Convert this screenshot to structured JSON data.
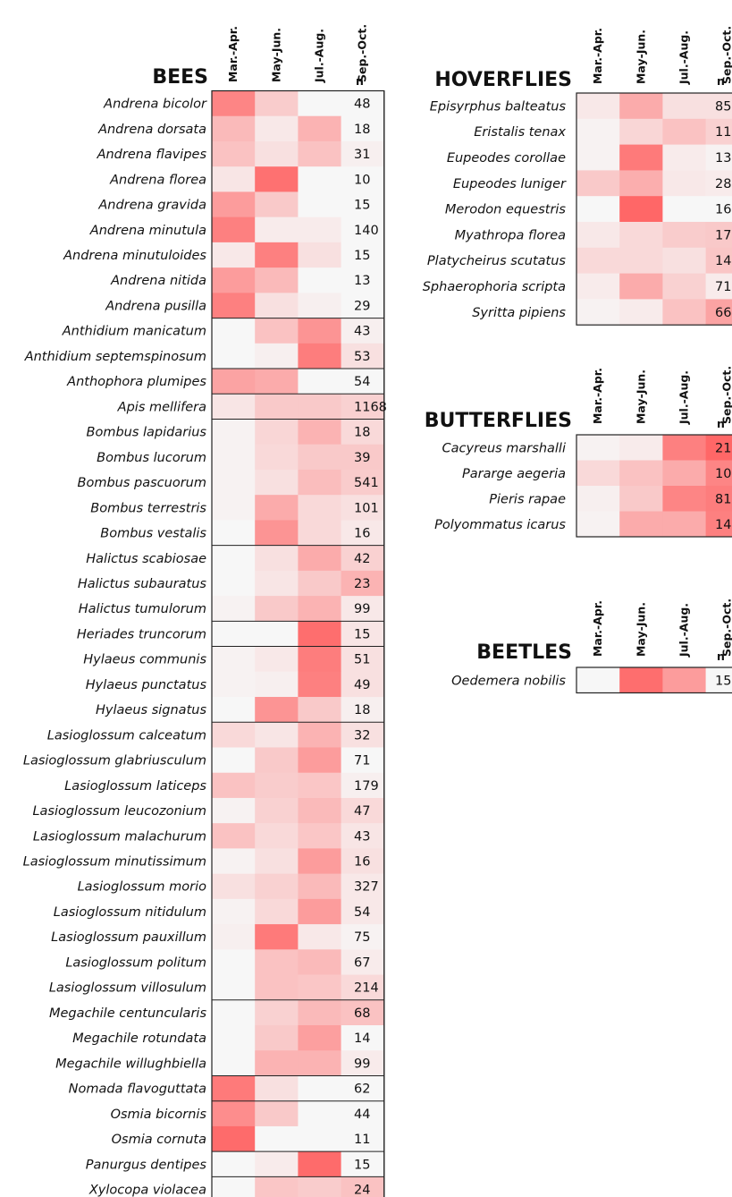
{
  "month_labels": [
    "Mar.-Apr.",
    "May-Jun.",
    "Jul.-Aug.",
    "Sep.-Oct."
  ],
  "n_label": "n",
  "color_scale": {
    "low": "#f7f7f7",
    "high": "#ff5f5f"
  },
  "chart_data": {
    "type": "heatmap",
    "value_description": "relative share of observations per period (0 = none, 1 = maximum), read from cell shading",
    "columns": [
      "Mar.-Apr.",
      "May-Jun.",
      "Jul.-Aug.",
      "Sep.-Oct."
    ],
    "panels": [
      {
        "title": "BEES",
        "rows": [
          {
            "species": "Andrena bicolor",
            "n": "48",
            "values": [
              0.75,
              0.28,
              0.0,
              0.0
            ],
            "group_start": true
          },
          {
            "species": "Andrena dorsata",
            "n": "18",
            "values": [
              0.4,
              0.1,
              0.45,
              0.0
            ]
          },
          {
            "species": "Andrena flavipes",
            "n": "31",
            "values": [
              0.35,
              0.15,
              0.35,
              0.05
            ]
          },
          {
            "species": "Andrena florea",
            "n": "10",
            "values": [
              0.12,
              0.88,
              0.0,
              0.0
            ]
          },
          {
            "species": "Andrena gravida",
            "n": "15",
            "values": [
              0.6,
              0.3,
              0.0,
              0.0
            ]
          },
          {
            "species": "Andrena minutula",
            "n": "140",
            "values": [
              0.78,
              0.08,
              0.08,
              0.0
            ]
          },
          {
            "species": "Andrena minutuloides",
            "n": "15",
            "values": [
              0.1,
              0.78,
              0.15,
              0.0
            ]
          },
          {
            "species": "Andrena nitida",
            "n": "13",
            "values": [
              0.6,
              0.4,
              0.0,
              0.0
            ]
          },
          {
            "species": "Andrena pusilla",
            "n": "29",
            "values": [
              0.78,
              0.15,
              0.05,
              0.0
            ]
          },
          {
            "species": "Anthidium manicatum",
            "n": "43",
            "values": [
              0.0,
              0.35,
              0.65,
              0.05
            ],
            "group_start": true
          },
          {
            "species": "Anthidium septemspinosum",
            "n": "53",
            "values": [
              0.0,
              0.05,
              0.8,
              0.15
            ]
          },
          {
            "species": "Anthophora plumipes",
            "n": "54",
            "values": [
              0.55,
              0.5,
              0.0,
              0.0
            ],
            "group_start": true
          },
          {
            "species": "Apis mellifera",
            "n": "1168",
            "values": [
              0.12,
              0.3,
              0.3,
              0.25
            ],
            "group_start": true
          },
          {
            "species": "Bombus lapidarius",
            "n": "18",
            "values": [
              0.03,
              0.22,
              0.45,
              0.2
            ],
            "group_start": true
          },
          {
            "species": "Bombus lucorum",
            "n": "39",
            "values": [
              0.03,
              0.2,
              0.3,
              0.3
            ]
          },
          {
            "species": "Bombus pascuorum",
            "n": "541",
            "values": [
              0.03,
              0.15,
              0.38,
              0.28
            ]
          },
          {
            "species": "Bombus terrestris",
            "n": "101",
            "values": [
              0.03,
              0.5,
              0.2,
              0.15
            ]
          },
          {
            "species": "Bombus vestalis",
            "n": "16",
            "values": [
              0.0,
              0.65,
              0.2,
              0.1
            ]
          },
          {
            "species": "Halictus scabiosae",
            "n": "42",
            "values": [
              0.0,
              0.15,
              0.5,
              0.25
            ],
            "group_start": true
          },
          {
            "species": "Halictus subauratus",
            "n": "23",
            "values": [
              0.0,
              0.12,
              0.3,
              0.45
            ]
          },
          {
            "species": "Halictus tumulorum",
            "n": "99",
            "values": [
              0.03,
              0.3,
              0.45,
              0.1
            ]
          },
          {
            "species": "Heriades truncorum",
            "n": "15",
            "values": [
              0.0,
              0.0,
              0.9,
              0.12
            ],
            "group_start": true
          },
          {
            "species": "Hylaeus communis",
            "n": "51",
            "values": [
              0.03,
              0.1,
              0.8,
              0.15
            ],
            "group_start": true
          },
          {
            "species": "Hylaeus punctatus",
            "n": "49",
            "values": [
              0.03,
              0.05,
              0.78,
              0.15
            ]
          },
          {
            "species": "Hylaeus signatus",
            "n": "18",
            "values": [
              0.0,
              0.65,
              0.3,
              0.05
            ]
          },
          {
            "species": "Lasioglossum calceatum",
            "n": "32",
            "values": [
              0.2,
              0.12,
              0.45,
              0.15
            ],
            "group_start": true
          },
          {
            "species": "Lasioglossum glabriusculum",
            "n": "71",
            "values": [
              0.0,
              0.3,
              0.6,
              0.0
            ]
          },
          {
            "species": "Lasioglossum laticeps",
            "n": "179",
            "values": [
              0.35,
              0.28,
              0.32,
              0.05
            ]
          },
          {
            "species": "Lasioglossum leucozonium",
            "n": "47",
            "values": [
              0.03,
              0.25,
              0.4,
              0.2
            ]
          },
          {
            "species": "Lasioglossum malachurum",
            "n": "43",
            "values": [
              0.35,
              0.2,
              0.32,
              0.12
            ]
          },
          {
            "species": "Lasioglossum minutissimum",
            "n": "16",
            "values": [
              0.03,
              0.15,
              0.6,
              0.15
            ]
          },
          {
            "species": "Lasioglossum morio",
            "n": "327",
            "values": [
              0.15,
              0.25,
              0.4,
              0.1
            ]
          },
          {
            "species": "Lasioglossum nitidulum",
            "n": "54",
            "values": [
              0.03,
              0.2,
              0.6,
              0.1
            ]
          },
          {
            "species": "Lasioglossum pauxillum",
            "n": "75",
            "values": [
              0.05,
              0.82,
              0.1,
              0.03
            ]
          },
          {
            "species": "Lasioglossum politum",
            "n": "67",
            "values": [
              0.0,
              0.35,
              0.4,
              0.08
            ]
          },
          {
            "species": "Lasioglossum villosulum",
            "n": "214",
            "values": [
              0.0,
              0.35,
              0.32,
              0.2
            ]
          },
          {
            "species": "Megachile centuncularis",
            "n": "68",
            "values": [
              0.0,
              0.25,
              0.4,
              0.35
            ],
            "group_start": true
          },
          {
            "species": "Megachile rotundata",
            "n": "14",
            "values": [
              0.0,
              0.3,
              0.58,
              0.0
            ]
          },
          {
            "species": "Megachile willughbiella",
            "n": "99",
            "values": [
              0.0,
              0.45,
              0.45,
              0.08
            ]
          },
          {
            "species": "Nomada flavoguttata",
            "n": "62",
            "values": [
              0.82,
              0.15,
              0.0,
              0.0
            ],
            "group_start": true
          },
          {
            "species": "Osmia bicornis",
            "n": "44",
            "values": [
              0.7,
              0.3,
              0.0,
              0.0
            ],
            "group_start": true
          },
          {
            "species": "Osmia cornuta",
            "n": "11",
            "values": [
              0.92,
              0.0,
              0.0,
              0.0
            ]
          },
          {
            "species": "Panurgus dentipes",
            "n": "15",
            "values": [
              0.0,
              0.08,
              0.92,
              0.0
            ],
            "group_start": true
          },
          {
            "species": "Xylocopa violacea",
            "n": "24",
            "values": [
              0.0,
              0.32,
              0.28,
              0.35
            ],
            "group_start": true
          }
        ]
      },
      {
        "title": "HOVERFLIES",
        "rows": [
          {
            "species": "Episyrphus balteatus",
            "n": "85",
            "values": [
              0.1,
              0.5,
              0.15,
              0.15
            ],
            "group_start": true
          },
          {
            "species": "Eristalis tenax",
            "n": "11",
            "values": [
              0.03,
              0.22,
              0.35,
              0.25
            ]
          },
          {
            "species": "Eupeodes corollae",
            "n": "13",
            "values": [
              0.03,
              0.82,
              0.08,
              0.03
            ]
          },
          {
            "species": "Eupeodes luniger",
            "n": "28",
            "values": [
              0.3,
              0.48,
              0.1,
              0.08
            ]
          },
          {
            "species": "Merodon equestris",
            "n": "16",
            "values": [
              0.0,
              0.95,
              0.0,
              0.0
            ]
          },
          {
            "species": "Myathropa florea",
            "n": "17",
            "values": [
              0.1,
              0.2,
              0.28,
              0.3
            ]
          },
          {
            "species": "Platycheirus scutatus",
            "n": "14",
            "values": [
              0.2,
              0.2,
              0.15,
              0.32
            ]
          },
          {
            "species": "Sphaerophoria scripta",
            "n": "71",
            "values": [
              0.08,
              0.5,
              0.25,
              0.08
            ]
          },
          {
            "species": "Syritta pipiens",
            "n": "66",
            "values": [
              0.03,
              0.08,
              0.35,
              0.55
            ]
          }
        ]
      },
      {
        "title": "BUTTERFLIES",
        "rows": [
          {
            "species": "Cacyreus marshalli",
            "n": "21",
            "values": [
              0.03,
              0.08,
              0.78,
              0.95
            ],
            "group_start": true
          },
          {
            "species": "Pararge aegeria",
            "n": "10",
            "values": [
              0.2,
              0.35,
              0.5,
              0.75
            ]
          },
          {
            "species": "Pieris rapae",
            "n": "81",
            "values": [
              0.05,
              0.3,
              0.75,
              0.8
            ]
          },
          {
            "species": "Polyommatus icarus",
            "n": "14",
            "values": [
              0.03,
              0.5,
              0.5,
              0.78
            ]
          }
        ]
      },
      {
        "title": "BEETLES",
        "rows": [
          {
            "species": "Oedemera nobilis",
            "n": "15",
            "values": [
              0.0,
              0.9,
              0.6,
              0.0
            ],
            "group_start": true
          }
        ]
      }
    ]
  }
}
